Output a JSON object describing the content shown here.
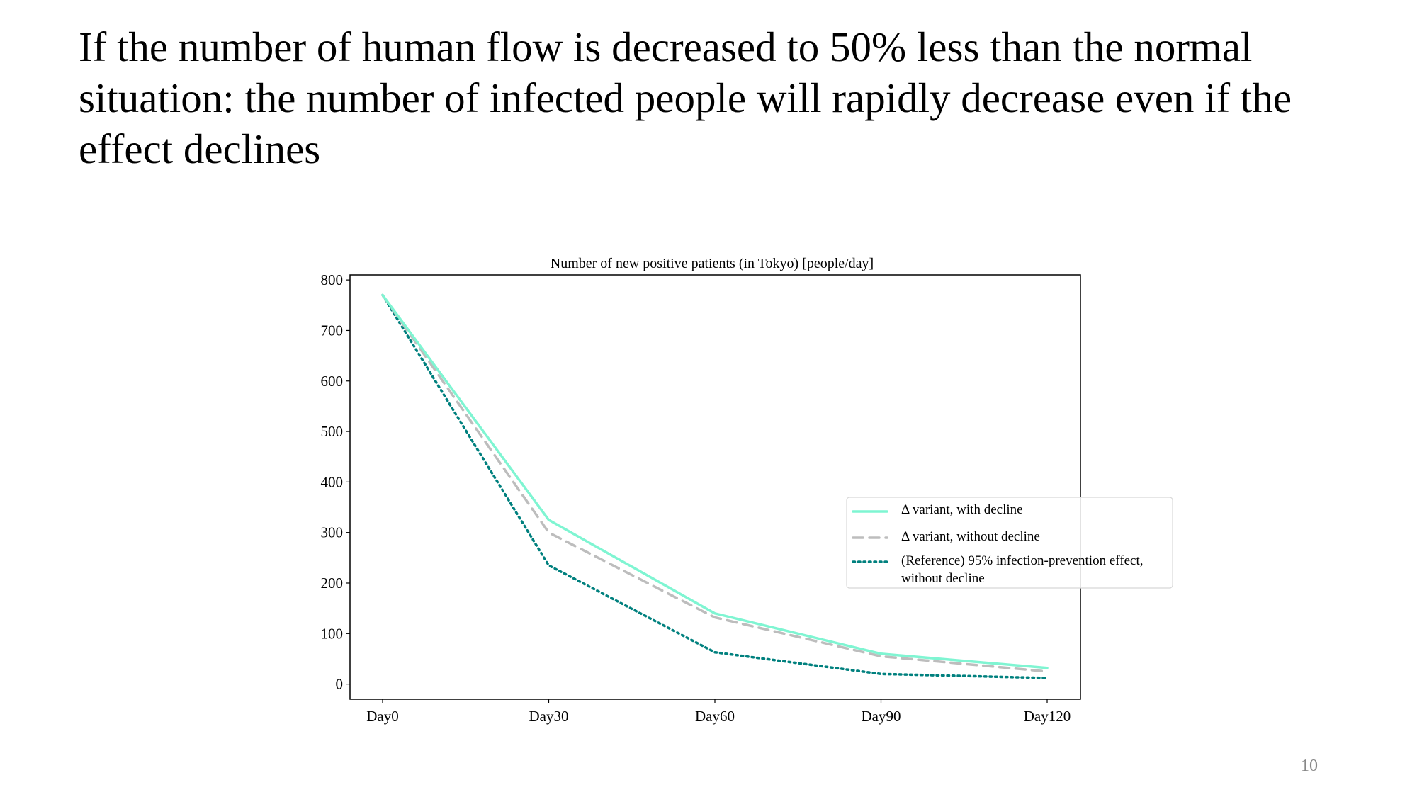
{
  "slide": {
    "title": "If the number of human flow is decreased to 50% less than the normal situation: the number of infected people will rapidly decrease even if the effect declines",
    "page_number": "10"
  },
  "chart_data": {
    "type": "line",
    "title": "Number of new positive patients (in Tokyo) [people/day]",
    "xlabel": "",
    "ylabel": "",
    "categories": [
      "Day0",
      "Day30",
      "Day60",
      "Day90",
      "Day120"
    ],
    "ylim": [
      -30,
      810
    ],
    "yticks": [
      0,
      100,
      200,
      300,
      400,
      500,
      600,
      700,
      800
    ],
    "ytick_labels": [
      "0",
      "100",
      "200",
      "300",
      "400",
      "500",
      "600",
      "700",
      "800"
    ],
    "grid": false,
    "legend_position": "center-right",
    "series": [
      {
        "name": "Δ variant, with decline",
        "legend_lines": [
          "Δ variant, with decline"
        ],
        "style": "solid",
        "color": "#7ff5d2",
        "values": [
          770,
          325,
          140,
          60,
          32
        ]
      },
      {
        "name": "Δ variant, without decline",
        "legend_lines": [
          "Δ variant, without decline"
        ],
        "style": "dashed",
        "color": "#bdbdbd",
        "values": [
          770,
          300,
          132,
          55,
          25
        ]
      },
      {
        "name": "(Reference) 95% infection-prevention effect, without decline",
        "legend_lines": [
          "(Reference) 95% infection-prevention effect,",
          "without decline"
        ],
        "style": "dotted",
        "color": "#00807e",
        "values": [
          770,
          235,
          63,
          20,
          12
        ]
      }
    ]
  }
}
